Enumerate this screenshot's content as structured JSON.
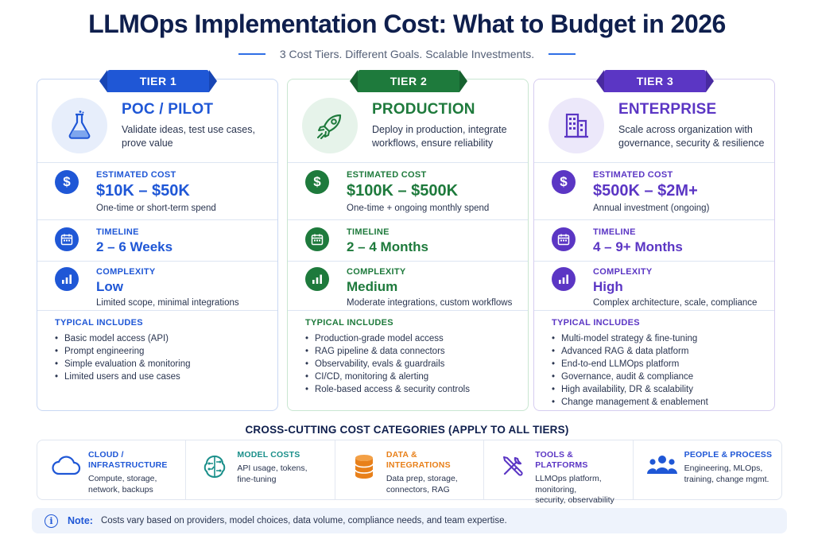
{
  "title": "LLMOps Implementation Cost: What to Budget in 2026",
  "subtitle": "3 Cost Tiers. Different Goals. Scalable Investments.",
  "colors": {
    "tier1": "#1f57d6",
    "tier2": "#1e7a3c",
    "tier3": "#5b36c4",
    "navy": "#0f1f4d"
  },
  "tiers": [
    {
      "badge": "TIER 1",
      "icon": "flask-icon",
      "name": "POC / PILOT",
      "description_lines": [
        "Validate ideas, test use cases,",
        "prove value"
      ],
      "cost_label": "ESTIMATED COST",
      "cost_value": "$10K – $50K",
      "cost_note": "One-time or short-term spend",
      "timeline_label": "TIMELINE",
      "timeline_value": "2 – 6 Weeks",
      "complexity_label": "COMPLEXITY",
      "complexity_value": "Low",
      "complexity_note": "Limited scope, minimal integrations",
      "includes_title": "TYPICAL INCLUDES",
      "includes": [
        "Basic model access (API)",
        "Prompt engineering",
        "Simple evaluation & monitoring",
        "Limited users and use cases"
      ]
    },
    {
      "badge": "TIER 2",
      "icon": "rocket-icon",
      "name": "PRODUCTION",
      "description_lines": [
        "Deploy in production, integrate",
        "workflows, ensure reliability"
      ],
      "cost_label": "ESTIMATED COST",
      "cost_value": "$100K – $500K",
      "cost_note": "One-time + ongoing monthly spend",
      "timeline_label": "TIMELINE",
      "timeline_value": "2 – 4 Months",
      "complexity_label": "COMPLEXITY",
      "complexity_value": "Medium",
      "complexity_note": "Moderate integrations, custom workflows",
      "includes_title": "TYPICAL INCLUDES",
      "includes": [
        "Production-grade model access",
        "RAG pipeline & data connectors",
        "Observability, evals & guardrails",
        "CI/CD, monitoring & alerting",
        "Role-based access & security controls"
      ]
    },
    {
      "badge": "TIER 3",
      "icon": "building-icon",
      "name": "ENTERPRISE",
      "description_lines": [
        "Scale across organization with",
        "governance, security & resilience"
      ],
      "cost_label": "ESTIMATED COST",
      "cost_value": "$500K – $2M+",
      "cost_note": "Annual investment (ongoing)",
      "timeline_label": "TIMELINE",
      "timeline_value": "4 – 9+ Months",
      "complexity_label": "COMPLEXITY",
      "complexity_value": "High",
      "complexity_note": "Complex architecture, scale, compliance",
      "includes_title": "TYPICAL INCLUDES",
      "includes": [
        "Multi-model strategy & fine-tuning",
        "Advanced RAG & data platform",
        "End-to-end LLMOps platform",
        "Governance, audit & compliance",
        "High availability, DR & scalability",
        "Change management & enablement"
      ]
    }
  ],
  "cross_cutting": {
    "title": "CROSS-CUTTING COST CATEGORIES (APPLY TO ALL TIERS)",
    "categories": [
      {
        "icon": "cloud-icon",
        "color": "#1f57d6",
        "title_lines": [
          "CLOUD /",
          "INFRASTRUCTURE"
        ],
        "desc_lines": [
          "Compute, storage,",
          "network, backups"
        ]
      },
      {
        "icon": "brain-icon",
        "color": "#1a8f8a",
        "title_lines": [
          "MODEL COSTS"
        ],
        "desc_lines": [
          "API usage, tokens,",
          "fine-tuning"
        ]
      },
      {
        "icon": "database-icon",
        "color": "#e8801a",
        "title_lines": [
          "DATA & INTEGRATIONS"
        ],
        "desc_lines": [
          "Data prep, storage,",
          "connectors, RAG"
        ]
      },
      {
        "icon": "tools-icon",
        "color": "#5b36c4",
        "title_lines": [
          "TOOLS & PLATFORMS"
        ],
        "desc_lines": [
          "LLMOps platform, monitoring,",
          "security, observability"
        ]
      },
      {
        "icon": "people-icon",
        "color": "#1f57d6",
        "title_lines": [
          "PEOPLE & PROCESS"
        ],
        "desc_lines": [
          "Engineering, MLOps,",
          "training, change mgmt."
        ]
      }
    ]
  },
  "note": {
    "label": "Note:",
    "text": "Costs vary based on providers, model choices, data volume, compliance needs, and team expertise."
  }
}
